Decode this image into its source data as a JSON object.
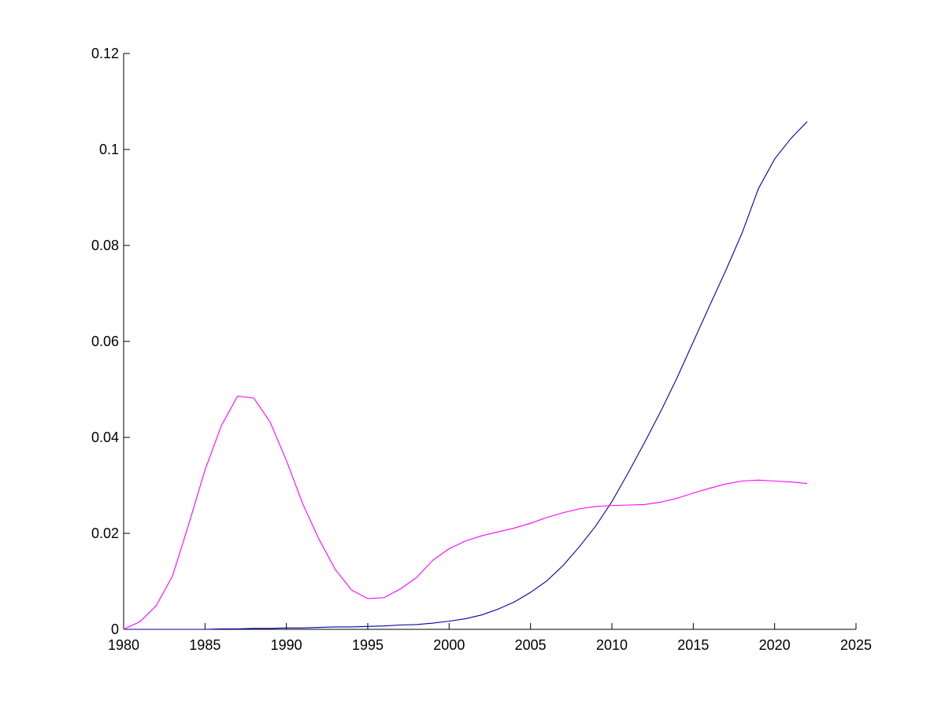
{
  "chart_data": {
    "type": "line",
    "title": "",
    "xlabel": "",
    "ylabel": "",
    "xlim": [
      1980,
      2025
    ],
    "ylim": [
      0,
      0.12
    ],
    "grid": false,
    "legend": "none",
    "x_ticks": [
      1980,
      1985,
      1990,
      1995,
      2000,
      2005,
      2010,
      2015,
      2020,
      2025
    ],
    "y_ticks": [
      0,
      0.02,
      0.04,
      0.06,
      0.08,
      0.1,
      0.12
    ],
    "x_tick_labels": [
      "1980",
      "1985",
      "1990",
      "1995",
      "2000",
      "2005",
      "2010",
      "2015",
      "2020",
      "2025"
    ],
    "y_tick_labels": [
      "0",
      "0.02",
      "0.04",
      "0.06",
      "0.08",
      "0.1",
      "0.12"
    ],
    "x": [
      1980,
      1981,
      1982,
      1983,
      1984,
      1985,
      1986,
      1987,
      1988,
      1989,
      1990,
      1991,
      1992,
      1993,
      1994,
      1995,
      1996,
      1997,
      1998,
      1999,
      2000,
      2001,
      2002,
      2003,
      2004,
      2005,
      2006,
      2007,
      2008,
      2009,
      2010,
      2011,
      2012,
      2013,
      2014,
      2015,
      2016,
      2017,
      2018,
      2019,
      2020,
      2021,
      2022
    ],
    "series": [
      {
        "color": "#0000aa",
        "values": [
          0.0,
          0.0,
          0.0,
          0.0,
          0.0,
          0.0,
          0.0001,
          0.0001,
          0.0002,
          0.0002,
          0.0003,
          0.0003,
          0.0004,
          0.0005,
          0.0005,
          0.0006,
          0.0007,
          0.0009,
          0.001,
          0.0013,
          0.0017,
          0.0022,
          0.003,
          0.0042,
          0.0057,
          0.0077,
          0.0101,
          0.0133,
          0.0172,
          0.0215,
          0.0266,
          0.0326,
          0.0389,
          0.0454,
          0.0524,
          0.0599,
          0.0674,
          0.0748,
          0.0826,
          0.0918,
          0.098,
          0.1023,
          0.1058
        ]
      },
      {
        "color": "#ff00ff",
        "values": [
          0.0,
          0.0016,
          0.0049,
          0.0111,
          0.0219,
          0.0332,
          0.0424,
          0.0486,
          0.0482,
          0.0432,
          0.0352,
          0.0262,
          0.0188,
          0.0125,
          0.0082,
          0.0064,
          0.0066,
          0.0084,
          0.0108,
          0.0144,
          0.0168,
          0.0184,
          0.0195,
          0.0203,
          0.0211,
          0.0221,
          0.0233,
          0.0243,
          0.0251,
          0.0256,
          0.0258,
          0.0259,
          0.026,
          0.0265,
          0.0273,
          0.0284,
          0.0294,
          0.0303,
          0.0309,
          0.0311,
          0.0309,
          0.0307,
          0.0304
        ]
      }
    ]
  }
}
